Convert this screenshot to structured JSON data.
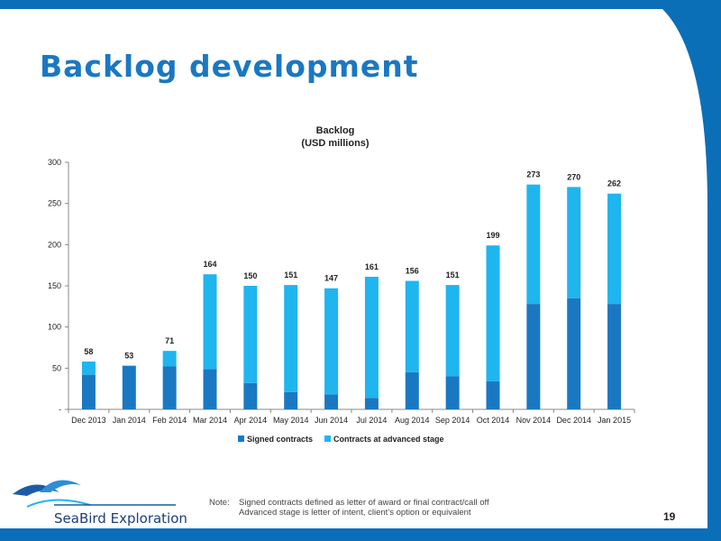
{
  "slide": {
    "title": "Backlog development",
    "page_number": "19",
    "logo_text": "SeaBird Exploration",
    "note_label": "Note:",
    "note_line1": "Signed contracts defined as letter of award or final contract/call off",
    "note_line2": "Advanced stage is letter of intent, client’s option or equivalent"
  },
  "colors": {
    "signed": "#1a78c2",
    "advanced": "#1fb5ef",
    "background_blue": "#0b6fb7"
  },
  "chart_data": {
    "type": "bar",
    "stacked": true,
    "title": "Backlog",
    "subtitle": "(USD millions)",
    "categories": [
      "Dec 2013",
      "Jan 2014",
      "Feb 2014",
      "Mar 2014",
      "Apr 2014",
      "May 2014",
      "Jun 2014",
      "Jul 2014",
      "Aug 2014",
      "Sep 2014",
      "Oct 2014",
      "Nov 2014",
      "Dec 2014",
      "Jan 2015"
    ],
    "series": [
      {
        "name": "Signed contracts",
        "values": [
          42,
          53,
          52,
          49,
          32,
          21,
          18,
          14,
          45,
          40,
          34,
          128,
          135,
          128
        ]
      },
      {
        "name": "Contracts at advanced stage",
        "values": [
          16,
          0,
          19,
          115,
          118,
          130,
          129,
          147,
          111,
          111,
          165,
          145,
          135,
          134
        ]
      }
    ],
    "totals": [
      58,
      53,
      71,
      164,
      150,
      151,
      147,
      161,
      156,
      151,
      199,
      273,
      270,
      262
    ],
    "y_ticks": [
      "-",
      "50",
      "100",
      "150",
      "200",
      "250",
      "300"
    ],
    "ylim": [
      0,
      300
    ],
    "legend_position": "bottom"
  }
}
